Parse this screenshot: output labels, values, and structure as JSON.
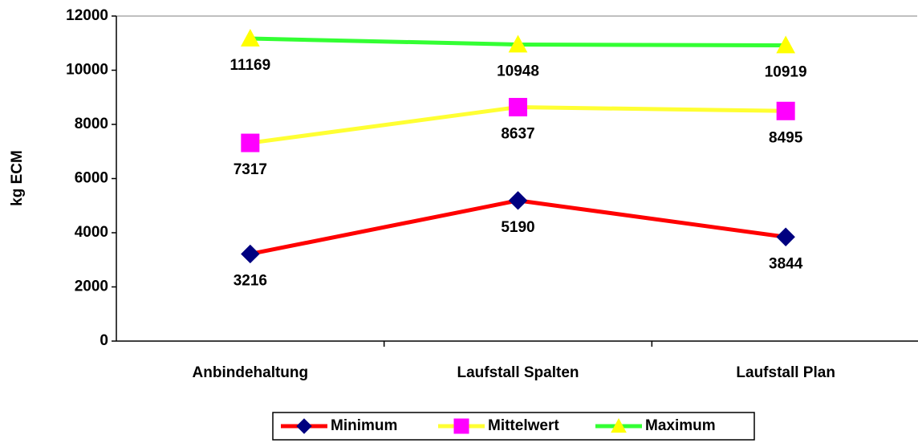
{
  "chart_data": {
    "type": "line",
    "y_label": "kg ECM",
    "categories": [
      "Anbindehaltung",
      "Laufstall Spalten",
      "Laufstall Plan"
    ],
    "series": [
      {
        "name": "Minimum",
        "color": "#ff0000",
        "marker": "diamond",
        "marker_color": "#000080",
        "values": [
          3216,
          5190,
          3844
        ]
      },
      {
        "name": "Mittelwert",
        "color": "#ffff33",
        "marker": "square",
        "marker_color": "#ff00ff",
        "values": [
          7317,
          8637,
          8495
        ]
      },
      {
        "name": "Maximum",
        "color": "#33ff33",
        "marker": "triangle",
        "marker_color": "#ffff00",
        "values": [
          11169,
          10948,
          10919
        ]
      }
    ],
    "ylim": [
      0,
      12000
    ],
    "yticks": [
      0,
      2000,
      4000,
      6000,
      8000,
      10000,
      12000
    ],
    "grid": false,
    "legend": "bottom"
  }
}
